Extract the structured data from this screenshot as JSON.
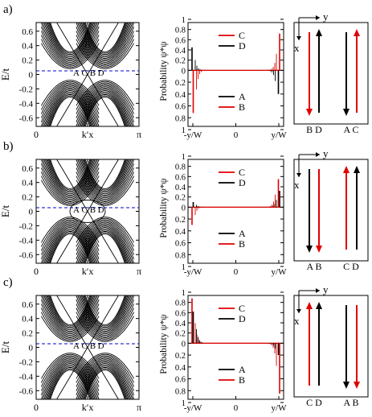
{
  "figure": {
    "rows": [
      {
        "panel_label": "a)",
        "bands": {
          "ylabel": "E/t",
          "yticks": [
            "0.6",
            "0.4",
            "0.2",
            "0",
            "-0.2",
            "-0.4",
            "-0.6"
          ],
          "xticks": [
            "0",
            "k′x",
            "π"
          ],
          "crossing_labels": [
            "A",
            "C",
            "B",
            "D"
          ]
        },
        "prob": {
          "ylabel": "Probability ψ*ψ",
          "yticks_top": [
            "1",
            "0.8",
            "0.6",
            "0.4",
            "0.2",
            "0"
          ],
          "yticks_bottom": [
            "0.2",
            "0.4",
            "0.6",
            "0.8",
            "1"
          ],
          "xticks": [
            "-y/W",
            "0",
            "y/W"
          ],
          "legend_top": [
            {
              "label": "C",
              "color": "#e00000"
            },
            {
              "label": "D",
              "color": "#000000"
            }
          ],
          "legend_bottom": [
            {
              "label": "A",
              "color": "#000000"
            },
            {
              "label": "B",
              "color": "#e00000"
            }
          ]
        },
        "schematic": {
          "axis_y": "y",
          "axis_x": "x",
          "labels_left": "B D",
          "labels_right": "A C",
          "arrows": [
            "down-red",
            "up-black",
            "down-black",
            "up-red"
          ]
        }
      },
      {
        "panel_label": "b)",
        "bands": {
          "ylabel": "E/t",
          "yticks": [
            "0.6",
            "0.4",
            "0.2",
            "0",
            "-0.2",
            "-0.4",
            "-0.6"
          ],
          "xticks": [
            "0",
            "k′x",
            "π"
          ],
          "crossing_labels": [
            "A",
            "C",
            "B",
            "D"
          ]
        },
        "prob": {
          "ylabel": "Probability ψ*ψ",
          "yticks_top": [
            "1",
            "0.8",
            "0.6",
            "0.4",
            "0.2",
            "0"
          ],
          "yticks_bottom": [
            "0.2",
            "0.4",
            "0.6",
            "0.8",
            "1"
          ],
          "xticks": [
            "-y/W",
            "0",
            "y/W"
          ],
          "legend_top": [
            {
              "label": "C",
              "color": "#e00000"
            },
            {
              "label": "D",
              "color": "#000000"
            }
          ],
          "legend_bottom": [
            {
              "label": "A",
              "color": "#000000"
            },
            {
              "label": "B",
              "color": "#e00000"
            }
          ]
        },
        "schematic": {
          "axis_y": "y",
          "axis_x": "x",
          "labels_left": "A B",
          "labels_right": "C D",
          "arrows": [
            "down-black",
            "down-red",
            "up-red",
            "up-black"
          ]
        }
      },
      {
        "panel_label": "c)",
        "bands": {
          "ylabel": "E/t",
          "yticks": [
            "0.6",
            "0.4",
            "0.2",
            "0",
            "-0.2",
            "-0.4",
            "-0.6"
          ],
          "xticks": [
            "0",
            "k′x",
            "π"
          ],
          "crossing_labels": [
            "A",
            "C",
            "B",
            "D"
          ]
        },
        "prob": {
          "ylabel": "Probability ψ*ψ",
          "yticks_top": [
            "1",
            "0.8",
            "0.6",
            "0.4",
            "0.2",
            "0"
          ],
          "yticks_bottom": [
            "0.2",
            "0.4",
            "0.6",
            "0.8",
            "1"
          ],
          "xticks": [
            "-y/W",
            "0",
            "y/W"
          ],
          "legend_top": [
            {
              "label": "C",
              "color": "#e00000"
            },
            {
              "label": "D",
              "color": "#000000"
            }
          ],
          "legend_bottom": [
            {
              "label": "A",
              "color": "#000000"
            },
            {
              "label": "B",
              "color": "#e00000"
            }
          ]
        },
        "schematic": {
          "axis_y": "y",
          "axis_x": "x",
          "labels_left": "C D",
          "labels_right": "A B",
          "arrows": [
            "up-red",
            "up-black",
            "down-black",
            "down-red"
          ]
        }
      }
    ],
    "colors": {
      "red": "#e00000",
      "black": "#000000",
      "fermi_line": "#0000cc"
    }
  }
}
